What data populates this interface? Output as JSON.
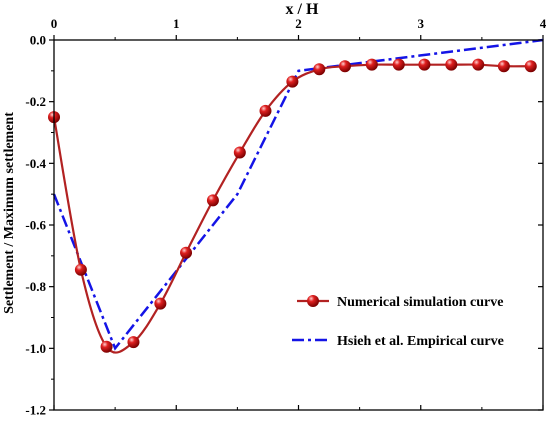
{
  "chart_data": {
    "type": "line",
    "xlabel": "x  /  H",
    "ylabel": "Settlement / Maximum settlement",
    "xlim": [
      0,
      4
    ],
    "ylim": [
      -1.2,
      0.0
    ],
    "x_ticks": [
      "0",
      "1",
      "2",
      "3",
      "4"
    ],
    "x_tick_values": [
      0,
      1,
      2,
      3,
      4
    ],
    "y_ticks": [
      "0.0",
      "-0.2",
      "-0.4",
      "-0.6",
      "-0.8",
      "-1.0",
      "-1.2"
    ],
    "y_tick_values": [
      0.0,
      -0.2,
      -0.4,
      -0.6,
      -0.8,
      -1.0,
      -1.2
    ],
    "x_axis_position": "top",
    "grid": false,
    "legend_position": "bottom-right",
    "series": [
      {
        "name": "Numerical simulation curve",
        "color": "#b22222",
        "style": "solid-with-sphere-markers",
        "x": [
          0.0,
          0.22,
          0.43,
          0.65,
          0.87,
          1.08,
          1.3,
          1.52,
          1.73,
          1.95,
          2.17,
          2.38,
          2.6,
          2.82,
          3.03,
          3.25,
          3.47,
          3.68,
          3.9
        ],
        "values": [
          -0.25,
          -0.745,
          -0.995,
          -0.98,
          -0.855,
          -0.69,
          -0.52,
          -0.365,
          -0.23,
          -0.135,
          -0.095,
          -0.085,
          -0.08,
          -0.08,
          -0.08,
          -0.08,
          -0.08,
          -0.085,
          -0.085
        ]
      },
      {
        "name": "Hsieh et al. Empirical curve",
        "color": "#1414e6",
        "style": "dash-dot",
        "x": [
          0.0,
          0.25,
          0.5,
          0.75,
          1.0,
          1.25,
          1.5,
          1.75,
          2.0,
          2.5,
          3.0,
          3.5,
          4.0
        ],
        "values": [
          -0.5,
          -0.75,
          -1.0,
          -0.875,
          -0.75,
          -0.625,
          -0.5,
          -0.3,
          -0.1,
          -0.075,
          -0.05,
          -0.025,
          0.0
        ]
      }
    ]
  }
}
